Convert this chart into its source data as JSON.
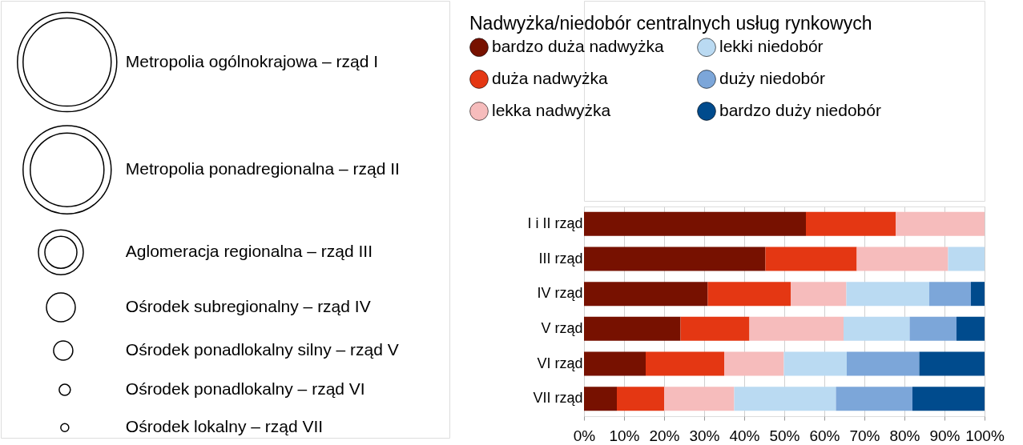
{
  "chart_data": {
    "type": "bar",
    "orientation": "horizontal",
    "stacked": true,
    "legend_title": "Nadwyżka/niedobór centralnych usług rynkowych",
    "categories": [
      "I i II rząd",
      "III rząd",
      "IV rząd",
      "V rząd",
      "VI rząd",
      "VII rząd"
    ],
    "series": [
      {
        "name": "bardzo duża nadwyżka",
        "color": "#771100",
        "values": [
          55.4,
          45.3,
          30.9,
          24.1,
          15.4,
          8.2
        ]
      },
      {
        "name": "duża nadwyżka",
        "color": "#e43713",
        "values": [
          22.4,
          22.8,
          20.7,
          17.2,
          19.6,
          11.8
        ]
      },
      {
        "name": "lekka nadwyżka",
        "color": "#f6bcbc",
        "values": [
          22.2,
          22.8,
          13.9,
          23.5,
          14.9,
          17.5
        ]
      },
      {
        "name": "lekki niedobór",
        "color": "#badaf2",
        "values": [
          0,
          9.1,
          20.7,
          16.5,
          15.7,
          25.4
        ]
      },
      {
        "name": "duży niedobór",
        "color": "#7ca6d9",
        "values": [
          0,
          0,
          10.4,
          11.7,
          18.1,
          19.1
        ]
      },
      {
        "name": "bardzo duży niedobór",
        "color": "#004b8d",
        "values": [
          0,
          0,
          3.4,
          7.0,
          16.3,
          18.0
        ]
      }
    ],
    "xlim": [
      0,
      100
    ],
    "xticks": [
      {
        "value": 0,
        "label": "0%"
      },
      {
        "value": 10,
        "label": "10%"
      },
      {
        "value": 20,
        "label": "20%"
      },
      {
        "value": 30,
        "label": "30%"
      },
      {
        "value": 40,
        "label": "40%"
      },
      {
        "value": 50,
        "label": "50%"
      },
      {
        "value": 60,
        "label": "60%"
      },
      {
        "value": 70,
        "label": "70%"
      },
      {
        "value": 80,
        "label": "80%"
      },
      {
        "value": 90,
        "label": "90%"
      },
      {
        "value": 100,
        "label": "100%"
      }
    ],
    "grid": "x",
    "legend": "top",
    "annotations": [
      "Metropolia ogólnokrajowa – rząd I",
      "Metropolia ponadregionalna – rząd II",
      "Aglomeracja regionalna – rząd III",
      "Ośrodek subregionalny – rząd IV",
      "Ośrodek ponadlokalny silny – rząd V",
      "Ośrodek ponadlokalny – rząd VI",
      "Ośrodek lokalny – rząd VII"
    ]
  }
}
